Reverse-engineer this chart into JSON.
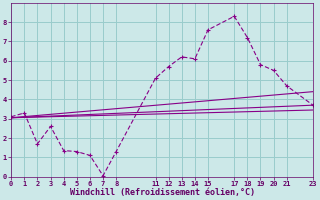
{
  "xlabel": "Windchill (Refroidissement éolien,°C)",
  "bg_color": "#cce8e8",
  "grid_color": "#99cccc",
  "line_color": "#880088",
  "xlim": [
    0,
    23
  ],
  "ylim": [
    0,
    9
  ],
  "xticks": [
    0,
    1,
    2,
    3,
    4,
    5,
    6,
    7,
    8,
    11,
    12,
    13,
    14,
    15,
    17,
    18,
    19,
    20,
    21,
    23
  ],
  "yticks": [
    0,
    1,
    2,
    3,
    4,
    5,
    6,
    7,
    8
  ],
  "main_x": [
    0,
    1,
    2,
    3,
    4,
    5,
    6,
    7,
    8,
    11,
    12,
    13,
    14,
    15,
    17,
    18,
    19,
    20,
    21,
    23
  ],
  "main_y": [
    3.1,
    3.3,
    1.7,
    2.6,
    1.35,
    1.3,
    1.1,
    0.05,
    1.3,
    5.1,
    5.7,
    6.2,
    6.1,
    7.6,
    8.3,
    7.2,
    5.8,
    5.5,
    4.7,
    3.7
  ],
  "line1_x": [
    0,
    23
  ],
  "line1_y": [
    3.05,
    3.7
  ],
  "line2_x": [
    0,
    23
  ],
  "line2_y": [
    3.05,
    3.45
  ],
  "line3_x": [
    0,
    23
  ],
  "line3_y": [
    3.05,
    4.4
  ]
}
